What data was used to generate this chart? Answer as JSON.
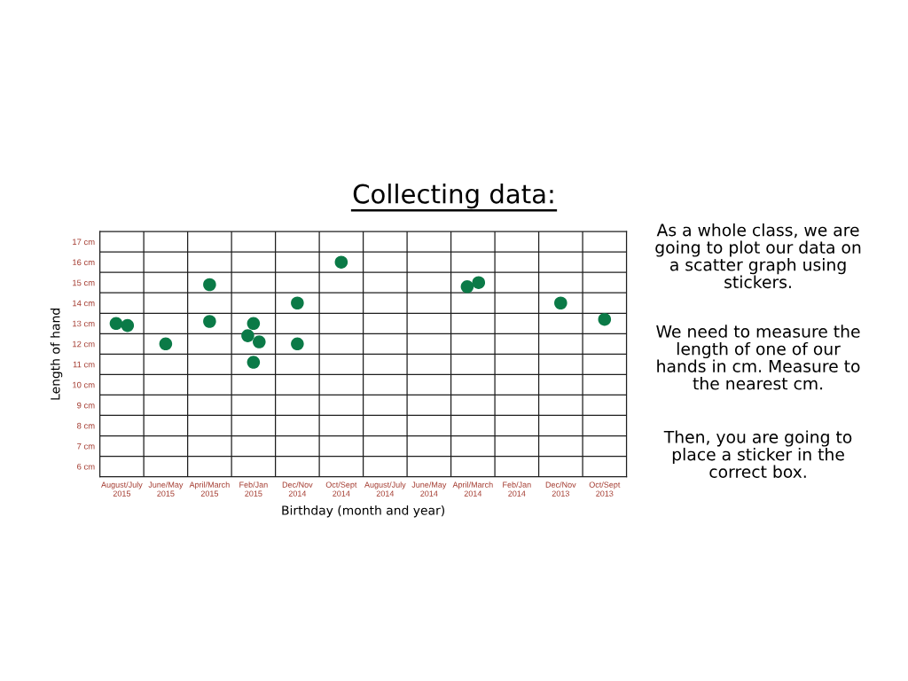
{
  "chart_data": {
    "type": "scatter",
    "title": "Collecting data:",
    "xlabel": "Birthday (month and year)",
    "ylabel": "Length of hand",
    "categories": [
      "August/July\n2015",
      "June/May\n2015",
      "April/March\n2015",
      "Feb/Jan\n2015",
      "Dec/Nov\n2014",
      "Oct/Sept\n2014",
      "August/July\n2014",
      "June/May\n2014",
      "April/March\n2014",
      "Feb/Jan\n2014",
      "Dec/Nov\n2013",
      "Oct/Sept\n2013"
    ],
    "series": [
      {
        "color": "#0b7a47",
        "x": [
          "August/July\n2015",
          "August/July\n2015",
          "June/May\n2015",
          "April/March\n2015",
          "April/March\n2015",
          "Feb/Jan\n2015",
          "Feb/Jan\n2015",
          "Feb/Jan\n2015",
          "Feb/Jan\n2015",
          "Dec/Nov\n2014",
          "Dec/Nov\n2014",
          "Oct/Sept\n2014",
          "April/March\n2014",
          "April/March\n2014",
          "Dec/Nov\n2013",
          "Oct/Sept\n2013"
        ],
        "values": [
          13.0,
          12.9,
          12.0,
          14.9,
          13.1,
          13.0,
          12.4,
          12.1,
          11.1,
          14.0,
          12.0,
          16.0,
          14.8,
          15.0,
          14.0,
          13.2
        ]
      }
    ],
    "ylim": [
      5.5,
      17.5
    ],
    "yticks": [
      {
        "value": 6,
        "label": "6 cm"
      },
      {
        "value": 7,
        "label": "7 cm"
      },
      {
        "value": 8,
        "label": "8 cm"
      },
      {
        "value": 9,
        "label": "9 cm"
      },
      {
        "value": 10,
        "label": "10 cm"
      },
      {
        "value": 11,
        "label": "11 cm"
      },
      {
        "value": 12,
        "label": "12 cm"
      },
      {
        "value": 13,
        "label": "13 cm"
      },
      {
        "value": 14,
        "label": "14 cm"
      },
      {
        "value": 15,
        "label": "15 cm"
      },
      {
        "value": 16,
        "label": "16 cm"
      },
      {
        "value": 17,
        "label": "17 cm"
      }
    ],
    "grid": true,
    "marker": "circle",
    "annotations": [
      "As a whole class, we are\ngoing to plot our data on\na scatter graph using\nstickers.",
      "We need to measure the\nlength of one of our\nhands in cm. Measure to\nthe nearest cm.",
      "Then, you are going to\nplace a sticker in the\ncorrect box."
    ]
  }
}
